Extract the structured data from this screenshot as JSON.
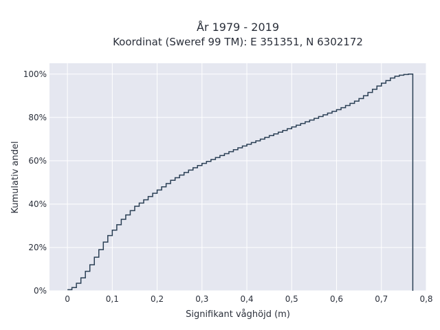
{
  "chart_data": {
    "type": "line",
    "title": "År 1979 - 2019",
    "subtitle": "Koordinat (Sweref 99 TM): E 351351, N 6302172",
    "xlabel": "Signifikant våghöjd (m)",
    "ylabel": "Kumulativ andel",
    "xlim": [
      -0.04,
      0.8
    ],
    "ylim": [
      0,
      1.05
    ],
    "xticks": [
      0,
      0.1,
      0.2,
      0.3,
      0.4,
      0.5,
      0.6,
      0.7,
      0.8
    ],
    "xtick_labels": [
      "0",
      "0,1",
      "0,2",
      "0,3",
      "0,4",
      "0,5",
      "0,6",
      "0,7",
      "0,8"
    ],
    "yticks": [
      0,
      0.2,
      0.4,
      0.6,
      0.8,
      1.0
    ],
    "ytick_labels": [
      "0%",
      "20%",
      "40%",
      "60%",
      "80%",
      "100%"
    ],
    "grid": true,
    "line_color": "#2a3f54",
    "background": "#e5e7f0",
    "series": [
      {
        "style": "step-post",
        "x": [
          0,
          0.01,
          0.02,
          0.03,
          0.04,
          0.05,
          0.06,
          0.07,
          0.08,
          0.09,
          0.1,
          0.11,
          0.12,
          0.13,
          0.14,
          0.15,
          0.16,
          0.17,
          0.18,
          0.19,
          0.2,
          0.21,
          0.22,
          0.23,
          0.24,
          0.25,
          0.26,
          0.27,
          0.28,
          0.29,
          0.3,
          0.31,
          0.32,
          0.33,
          0.34,
          0.35,
          0.36,
          0.37,
          0.38,
          0.39,
          0.4,
          0.41,
          0.42,
          0.43,
          0.44,
          0.45,
          0.46,
          0.47,
          0.48,
          0.49,
          0.5,
          0.51,
          0.52,
          0.53,
          0.54,
          0.55,
          0.56,
          0.57,
          0.58,
          0.59,
          0.6,
          0.61,
          0.62,
          0.63,
          0.64,
          0.65,
          0.66,
          0.67,
          0.68,
          0.69,
          0.7,
          0.71,
          0.72,
          0.73,
          0.74,
          0.75,
          0.76,
          0.77
        ],
        "y": [
          0.005,
          0.015,
          0.035,
          0.06,
          0.09,
          0.12,
          0.155,
          0.19,
          0.225,
          0.255,
          0.28,
          0.305,
          0.33,
          0.35,
          0.37,
          0.39,
          0.405,
          0.42,
          0.435,
          0.45,
          0.465,
          0.48,
          0.495,
          0.51,
          0.522,
          0.534,
          0.546,
          0.557,
          0.568,
          0.578,
          0.588,
          0.597,
          0.606,
          0.615,
          0.624,
          0.633,
          0.642,
          0.651,
          0.66,
          0.668,
          0.676,
          0.684,
          0.692,
          0.7,
          0.708,
          0.716,
          0.724,
          0.732,
          0.74,
          0.748,
          0.756,
          0.764,
          0.772,
          0.78,
          0.788,
          0.796,
          0.804,
          0.812,
          0.82,
          0.828,
          0.836,
          0.845,
          0.855,
          0.865,
          0.875,
          0.887,
          0.9,
          0.915,
          0.93,
          0.945,
          0.958,
          0.97,
          0.982,
          0.99,
          0.995,
          0.998,
          1.0,
          0.0
        ]
      }
    ]
  }
}
